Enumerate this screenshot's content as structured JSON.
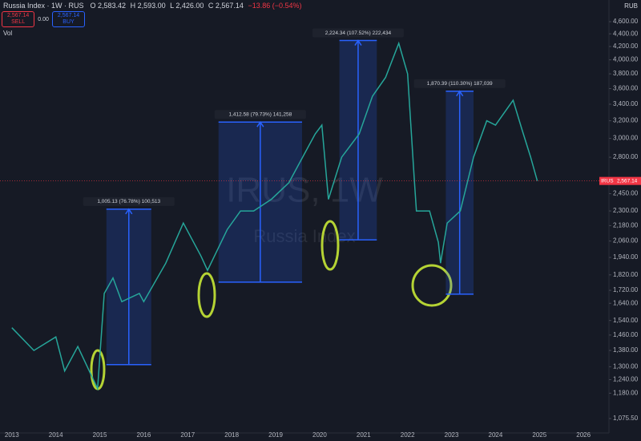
{
  "header": {
    "title": "Russia Index · 1W · RUS",
    "open": "O 2,583.42",
    "high": "H 2,593.00",
    "low": "L 2,426.00",
    "close": "C 2,567.14",
    "change": "−13.86 (−0.54%)",
    "volume": "Vol",
    "currency": "RUB"
  },
  "trade": {
    "sell_price": "2,567.14",
    "sell_label": "SELL",
    "spread": "0.00",
    "buy_price": "2,567.14",
    "buy_label": "BUY"
  },
  "chart_data": {
    "type": "line",
    "log_scale": true,
    "grid": false,
    "watermark": "IRUS, 1W",
    "watermark_subtitle": "Russia Index",
    "series": [
      {
        "name": "IRUS",
        "color": "#26a69a",
        "x": [
          2013.0,
          2013.5,
          2014.0,
          2014.2,
          2014.5,
          2014.95,
          2015.1,
          2015.3,
          2015.5,
          2015.9,
          2016.0,
          2016.5,
          2016.9,
          2017.3,
          2017.45,
          2017.9,
          2018.2,
          2018.5,
          2018.9,
          2019.3,
          2019.9,
          2020.05,
          2020.2,
          2020.5,
          2020.9,
          2021.2,
          2021.5,
          2021.8,
          2022.0,
          2022.15,
          2022.2,
          2022.5,
          2022.7,
          2022.75,
          2022.9,
          2023.2,
          2023.5,
          2023.8,
          2024.0,
          2024.4,
          2024.6,
          2024.8,
          2024.95
        ],
        "values": [
          1500,
          1380,
          1450,
          1280,
          1400,
          1200,
          1700,
          1800,
          1650,
          1700,
          1650,
          1900,
          2200,
          1950,
          1850,
          2150,
          2300,
          2300,
          2400,
          2550,
          3050,
          3150,
          2400,
          2800,
          3050,
          3500,
          3750,
          4250,
          3800,
          2600,
          2300,
          2300,
          2050,
          1900,
          2200,
          2300,
          2800,
          3200,
          3150,
          3450,
          3100,
          2800,
          2567.14
        ]
      }
    ],
    "last_price": 2567.14,
    "last_price_label": "2,567.14",
    "symbol_tag": "IRUS",
    "measurements": [
      {
        "label": "1,005.13 (76.78%) 100,513",
        "x0": 2015.15,
        "x1": 2016.17,
        "low": 1310,
        "high": 2315
      },
      {
        "label": "1,412.58 (79.73%) 141,258",
        "x0": 2017.7,
        "x1": 2019.6,
        "low": 1772,
        "high": 3185
      },
      {
        "label": "2,224.34 (107.52%) 222,434",
        "x0": 2020.45,
        "x1": 2021.3,
        "low": 2069,
        "high": 4293
      },
      {
        "label": "1,870.39 (110.30%) 187,039",
        "x0": 2022.87,
        "x1": 2023.5,
        "low": 1696,
        "high": 3566
      }
    ],
    "xlim": [
      2012.73,
      2026.58
    ],
    "xticks": [
      2013,
      2014,
      2015,
      2016,
      2017,
      2018,
      2019,
      2020,
      2021,
      2022,
      2023,
      2024,
      2025,
      2026
    ],
    "ylim": [
      1020,
      4980
    ],
    "yticks": [
      {
        "value": 1075.5,
        "label": "1,075.50"
      },
      {
        "value": 1180,
        "label": "1,180.00"
      },
      {
        "value": 1240,
        "label": "1,240.00"
      },
      {
        "value": 1300,
        "label": "1,300.00"
      },
      {
        "value": 1380,
        "label": "1,380.00"
      },
      {
        "value": 1460,
        "label": "1,460.00"
      },
      {
        "value": 1540,
        "label": "1,540.00"
      },
      {
        "value": 1640,
        "label": "1,640.00"
      },
      {
        "value": 1720,
        "label": "1,720.00"
      },
      {
        "value": 1820,
        "label": "1,820.00"
      },
      {
        "value": 1940,
        "label": "1,940.00"
      },
      {
        "value": 2060,
        "label": "2,060.00"
      },
      {
        "value": 2180,
        "label": "2,180.00"
      },
      {
        "value": 2300,
        "label": "2,300.00"
      },
      {
        "value": 2450,
        "label": "2,450.00"
      },
      {
        "value": 2800,
        "label": "2,800.00"
      },
      {
        "value": 3000,
        "label": "3,000.00"
      },
      {
        "value": 3200,
        "label": "3,200.00"
      },
      {
        "value": 3400,
        "label": "3,400.00"
      },
      {
        "value": 3600,
        "label": "3,600.00"
      },
      {
        "value": 3800,
        "label": "3,800.00"
      },
      {
        "value": 4000,
        "label": "4,000.00"
      },
      {
        "value": 4200,
        "label": "4,200.00"
      },
      {
        "value": 4400,
        "label": "4,400.00"
      },
      {
        "value": 4600,
        "label": "4,600.00"
      }
    ]
  }
}
